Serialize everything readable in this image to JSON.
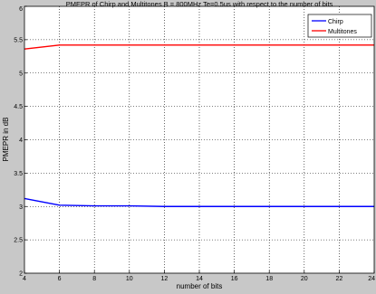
{
  "colors": {
    "figure_bg": "#c8c8c8",
    "plot_bg": "#ffffff",
    "axis": "#000000",
    "grid": "#000000",
    "chirp": "#0000ff",
    "multitones": "#ff0000"
  },
  "chart_data": {
    "type": "line",
    "title": "PMEPR of Chirp and Multitones B = 800MHz Te=0.5us with respect to the number of bits",
    "xlabel": "number of bits",
    "ylabel": "PMEPR in dB",
    "xlim": [
      4,
      24
    ],
    "ylim": [
      2,
      6
    ],
    "xticks": [
      4,
      6,
      8,
      10,
      12,
      14,
      16,
      18,
      20,
      22,
      24
    ],
    "yticks": [
      2,
      2.5,
      3,
      3.5,
      4,
      4.5,
      5,
      5.5,
      6
    ],
    "grid": true,
    "grid_style": "dotted",
    "legend_position": "top-right",
    "x": [
      4,
      6,
      8,
      10,
      12,
      14,
      16,
      18,
      20,
      22,
      24
    ],
    "series": [
      {
        "name": "Chirp",
        "color": "#0000ff",
        "values": [
          3.12,
          3.02,
          3.01,
          3.01,
          3.0,
          3.0,
          3.0,
          3.0,
          3.0,
          3.0,
          3.0
        ]
      },
      {
        "name": "Multitones",
        "color": "#ff0000",
        "values": [
          5.36,
          5.42,
          5.42,
          5.42,
          5.42,
          5.42,
          5.42,
          5.42,
          5.42,
          5.42,
          5.42
        ]
      }
    ]
  }
}
